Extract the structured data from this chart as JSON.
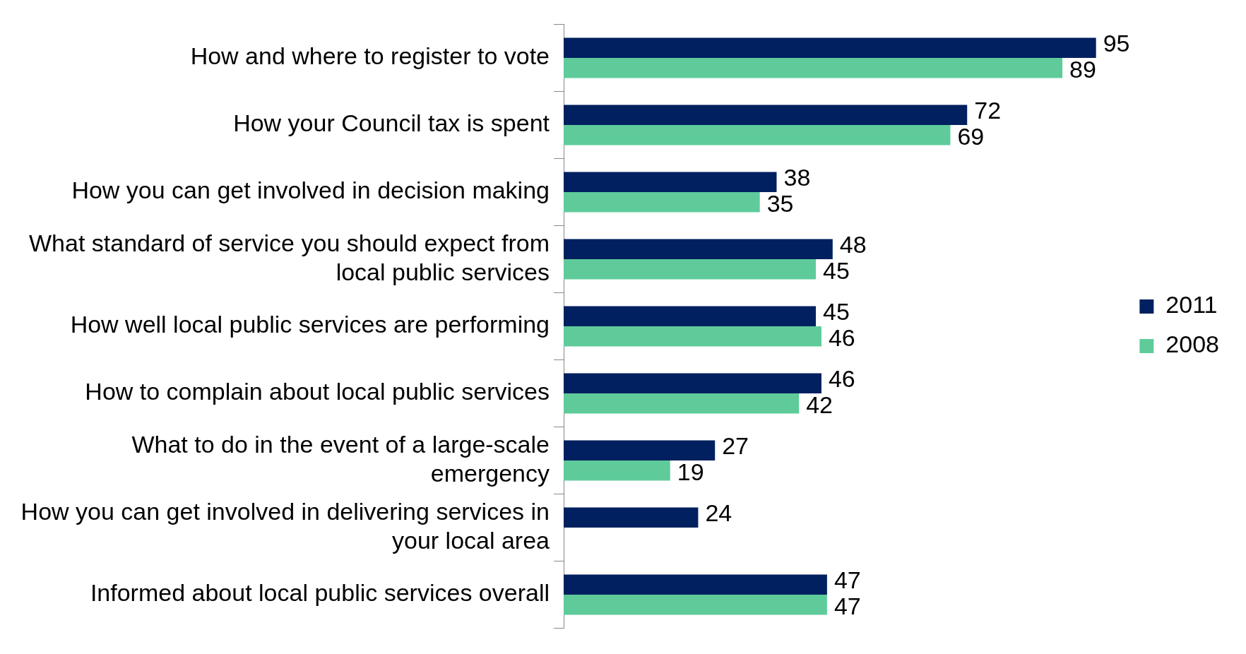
{
  "chart_data": {
    "type": "bar",
    "orientation": "horizontal",
    "categories": [
      "How and where to register to vote",
      "How your Council tax is spent",
      "How you can get involved in decision making",
      "What standard of service you should expect from local public services",
      "How well local public services are performing",
      "How to complain about local public services",
      "What to do in the event of a large-scale emergency",
      "How you can get involved in delivering services in your local area",
      "Informed about local public services overall"
    ],
    "series": [
      {
        "name": "2011",
        "color": "#002060",
        "values": [
          95,
          72,
          38,
          48,
          45,
          46,
          27,
          24,
          47
        ]
      },
      {
        "name": "2008",
        "color": "#5fcb9b",
        "values": [
          89,
          69,
          35,
          45,
          46,
          42,
          19,
          null,
          47
        ]
      }
    ],
    "data_labels": true,
    "legend": "right"
  }
}
